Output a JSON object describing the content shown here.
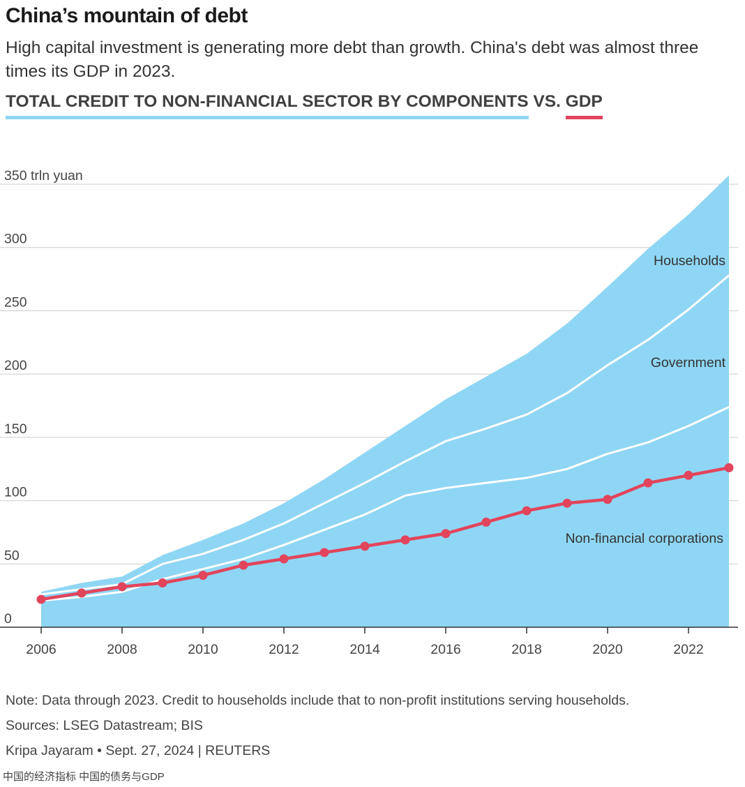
{
  "header": {
    "title": "China’s mountain of debt",
    "subtitle": "High capital investment is generating more debt than growth. China's debt was almost three times its GDP in 2023.",
    "legend_credit": "TOTAL CREDIT TO NON-FINANCIAL SECTOR BY COMPONENTS",
    "legend_vs": " VS. ",
    "legend_gdp": "GDP"
  },
  "colors": {
    "credit_area": "#8fd6f4",
    "gdp_line": "#e2445c",
    "separator": "#ffffff",
    "grid": "#cccccc",
    "axis": "#333333"
  },
  "chart_data": {
    "type": "area",
    "x": [
      2006,
      2007,
      2008,
      2009,
      2010,
      2011,
      2012,
      2013,
      2014,
      2015,
      2016,
      2017,
      2018,
      2019,
      2020,
      2021,
      2022,
      2023
    ],
    "ylim": [
      0,
      350
    ],
    "y_unit_label": "350 trln yuan",
    "y_ticks": [
      0,
      50,
      100,
      150,
      200,
      250,
      300,
      350
    ],
    "x_ticks": [
      2006,
      2008,
      2010,
      2012,
      2014,
      2016,
      2018,
      2020,
      2022
    ],
    "stacked": true,
    "series": [
      {
        "name": "Non-financial corporations",
        "values": [
          21,
          24,
          28,
          38,
          46,
          54,
          65,
          77,
          89,
          104,
          110,
          114,
          118,
          125,
          137,
          146,
          159,
          174
        ]
      },
      {
        "name": "Government",
        "values": [
          5,
          6,
          6,
          12,
          12,
          15,
          17,
          21,
          25,
          27,
          37,
          43,
          50,
          60,
          70,
          81,
          92,
          104
        ]
      },
      {
        "name": "Households",
        "values": [
          2,
          5,
          6,
          7,
          11,
          13,
          16,
          19,
          24,
          28,
          33,
          41,
          48,
          55,
          62,
          72,
          75,
          79
        ]
      }
    ],
    "line_series": {
      "name": "GDP",
      "values": [
        22,
        27,
        32,
        35,
        41,
        49,
        54,
        59,
        64,
        69,
        74,
        83,
        92,
        98,
        101,
        114,
        120,
        126
      ]
    },
    "annotations": [
      {
        "text": "Households",
        "anchor": "end"
      },
      {
        "text": "Government",
        "anchor": "end"
      },
      {
        "text": "Non-financial corporations",
        "anchor": "end"
      }
    ],
    "grid": true
  },
  "footer": {
    "note": "Note: Data through 2023. Credit to households include that to non-profit institutions serving households.",
    "sources": "Sources: LSEG Datastream; BIS",
    "credit": "Kripa Jayaram • Sept. 27, 2024 | REUTERS",
    "tags": "中国的经济指标 中国的债务与GDP"
  }
}
